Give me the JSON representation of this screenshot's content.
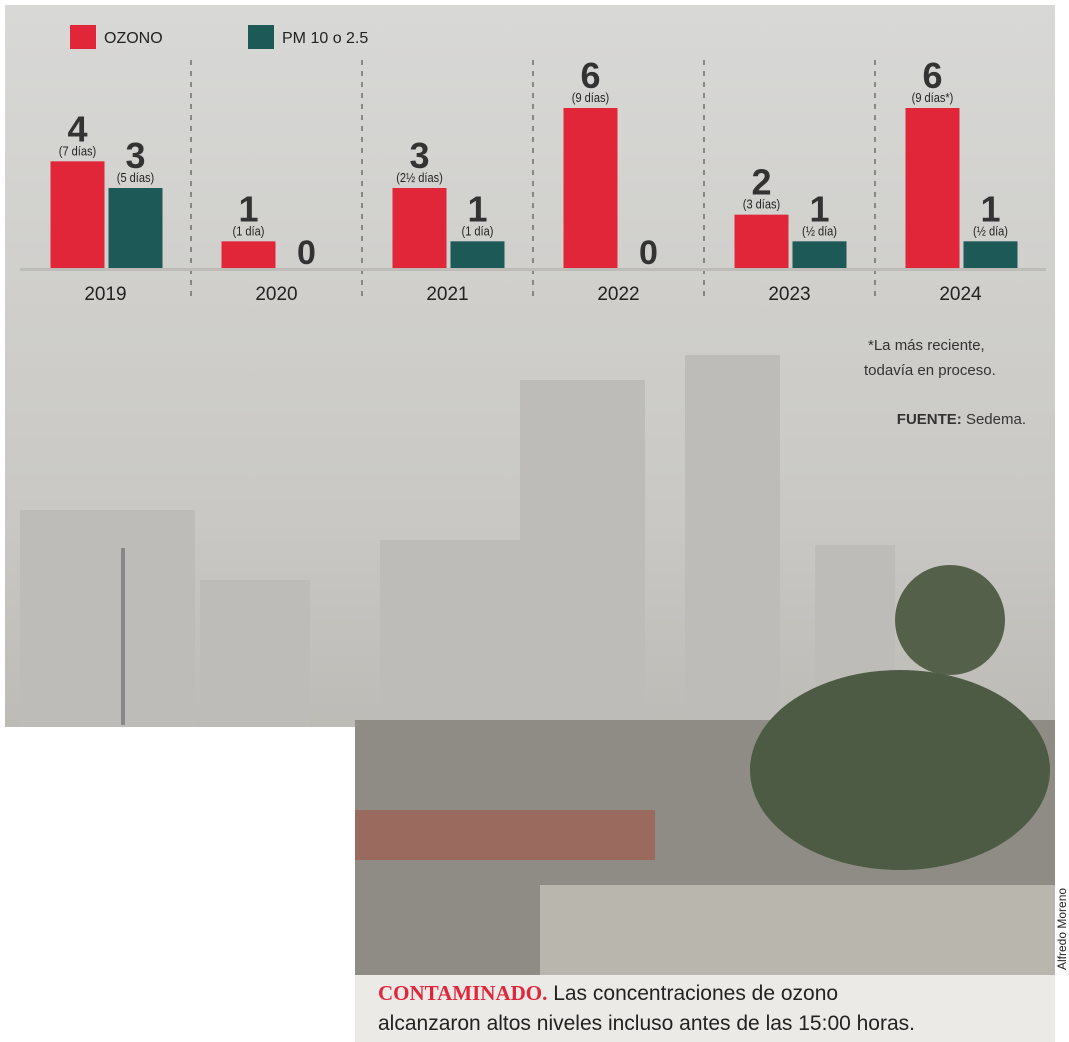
{
  "chart_data": {
    "type": "bar",
    "categories": [
      "2019",
      "2020",
      "2021",
      "2022",
      "2023",
      "2024"
    ],
    "series": [
      {
        "name": "OZONO",
        "color": "#e2263a",
        "values": [
          4,
          1,
          3,
          6,
          2,
          6
        ],
        "notes": [
          "(7 días)",
          "(1 día)",
          "(2½ días)",
          "(9 días)",
          "(3 días)",
          "(9 días*)"
        ]
      },
      {
        "name": "PM 10 o 2.5",
        "color": "#1d5a57",
        "values": [
          3,
          0,
          1,
          0,
          1,
          1
        ],
        "notes": [
          "(5 días)",
          null,
          "(1 día)",
          null,
          "(½ día)",
          "(½ día)"
        ]
      }
    ],
    "ylim": [
      0,
      6
    ],
    "footnote": [
      "*La más reciente,",
      "todavía en proceso."
    ],
    "source_label": "FUENTE:",
    "source": "Sedema."
  },
  "caption": {
    "lead": "CONTAMINADO.",
    "lines": [
      "Las concentraciones de ozono",
      "alcanzaron altos niveles incluso antes de las 15:00 horas."
    ]
  },
  "credit": "Alfredo Moreno"
}
